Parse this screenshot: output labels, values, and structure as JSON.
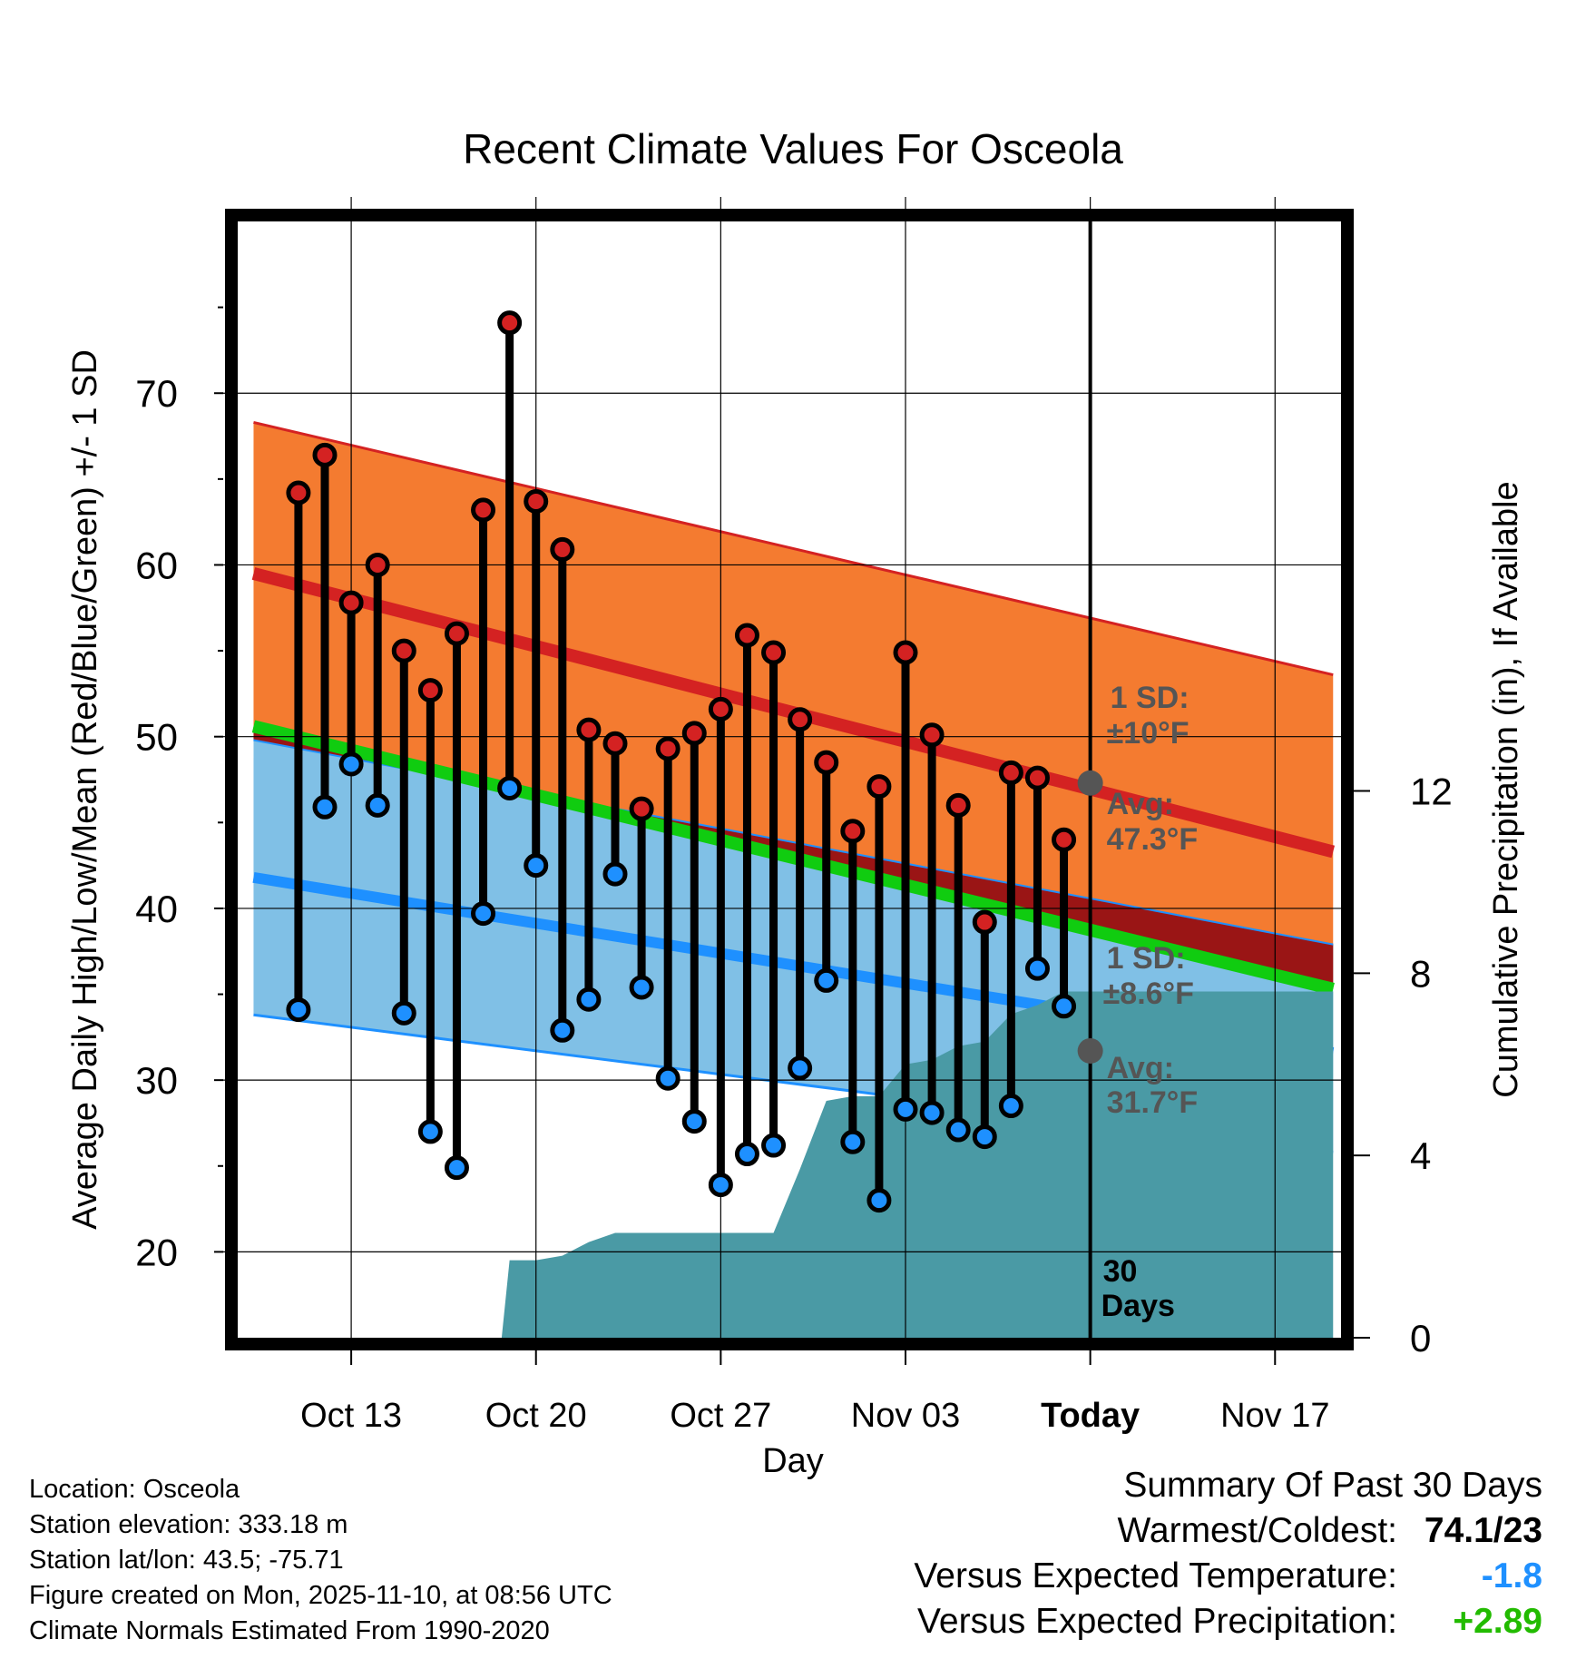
{
  "chart_data": {
    "type": "line",
    "title": "Recent Climate Values For Osceola",
    "xlabel": "Day",
    "ylabel": "Average Daily High/Low/Mean (Red/Blue/Green) +/- 1 SD",
    "y2label": "Cumulative Precipitation (in), If Available",
    "xlim": [
      -4.3,
      37.5
    ],
    "ylim": [
      15,
      80
    ],
    "y2lim": [
      0,
      24.5
    ],
    "yticks": [
      20,
      30,
      40,
      50,
      60,
      70
    ],
    "y2ticks": [
      0,
      4,
      8,
      12
    ],
    "xticks": [
      {
        "x": 0,
        "label": "Oct 13"
      },
      {
        "x": 7,
        "label": "Oct 20"
      },
      {
        "x": 14,
        "label": "Oct 27"
      },
      {
        "x": 21,
        "label": "Nov 03"
      },
      {
        "x": 28,
        "label": "Today"
      },
      {
        "x": 35,
        "label": "Nov 17"
      }
    ],
    "today_x": 28,
    "days_label": [
      "30",
      "Days"
    ],
    "normals": {
      "x": [
        -3.7,
        37.2
      ],
      "high_mean": [
        59.5,
        43.3
      ],
      "high_plus_sd": [
        68.3,
        53.6
      ],
      "low_mean": [
        41.8,
        31.6
      ],
      "low_minus_sd": [
        33.8,
        25.8
      ],
      "low_plus_sd": [
        49.8,
        37.9
      ],
      "mean": [
        50.6,
        35.3
      ]
    },
    "annotations": {
      "high_sd": [
        "1 SD:",
        "±10°F"
      ],
      "high_avg": [
        "Avg:",
        "47.3°F"
      ],
      "low_sd": [
        "1 SD:",
        "±8.6°F"
      ],
      "low_avg": [
        "Avg:",
        "31.7°F"
      ],
      "high_avg_value": 47.3,
      "low_avg_value": 31.7
    },
    "series": [
      {
        "name": "Daily High",
        "color": "#d42222",
        "x": [
          -2,
          -1,
          0,
          1,
          2,
          3,
          4,
          5,
          6,
          7,
          8,
          9,
          10,
          11,
          12,
          13,
          14,
          15,
          16,
          17,
          18,
          19,
          20,
          21,
          22,
          23,
          24,
          25,
          26,
          27
        ],
        "values": [
          64.2,
          66.4,
          57.8,
          60.0,
          55.0,
          52.7,
          56.0,
          63.2,
          74.1,
          63.7,
          60.9,
          50.4,
          49.6,
          45.8,
          49.3,
          50.2,
          51.6,
          55.9,
          54.9,
          51.0,
          48.5,
          44.5,
          47.1,
          54.9,
          50.1,
          46.0,
          39.2,
          47.9,
          47.6,
          44.0
        ]
      },
      {
        "name": "Daily Low",
        "color": "#1e90ff",
        "x": [
          -2,
          -1,
          0,
          1,
          2,
          3,
          4,
          5,
          6,
          7,
          8,
          9,
          10,
          11,
          12,
          13,
          14,
          15,
          16,
          17,
          18,
          19,
          20,
          21,
          22,
          23,
          24,
          25,
          26,
          27
        ],
        "values": [
          34.1,
          45.9,
          48.4,
          46.0,
          33.9,
          27.0,
          24.9,
          39.7,
          47.0,
          42.5,
          32.9,
          34.7,
          42.0,
          35.4,
          30.1,
          27.6,
          23.9,
          25.7,
          26.2,
          30.7,
          35.8,
          26.4,
          23.0,
          28.3,
          28.1,
          27.1,
          26.7,
          28.5,
          36.5,
          34.3
        ]
      },
      {
        "name": "Cumulative Precipitation (in)",
        "x": [
          5.7,
          6,
          7,
          8,
          9,
          10,
          11,
          12,
          13,
          14,
          15,
          16,
          17,
          18,
          19,
          20,
          21,
          22,
          23,
          24,
          25,
          26,
          27,
          28,
          37.2
        ],
        "values": [
          0,
          1.7,
          1.7,
          1.8,
          2.1,
          2.3,
          2.3,
          2.3,
          2.3,
          2.3,
          2.3,
          2.3,
          3.7,
          5.2,
          5.3,
          5.3,
          6.0,
          6.1,
          6.4,
          6.5,
          7.1,
          7.3,
          7.6,
          7.6,
          7.6
        ]
      }
    ]
  },
  "info": {
    "location": "Location: Osceola",
    "elevation": "Station elevation: 333.18 m",
    "latlon": "Station lat/lon: 43.5; -75.71",
    "created": "Figure created on Mon, 2025-11-10, at 08:56 UTC",
    "normals": "Climate Normals Estimated From 1990-2020"
  },
  "summary": {
    "title": "Summary Of Past 30 Days",
    "warmest_label": "Warmest/Coldest:",
    "warmest_value": "74.1/23",
    "temp_label": "Versus Expected Temperature:",
    "temp_value": "-1.8",
    "temp_color": "#1e90ff",
    "precip_label": "Versus Expected Precipitation:",
    "precip_value": "+2.89",
    "precip_color": "#22bb00"
  }
}
